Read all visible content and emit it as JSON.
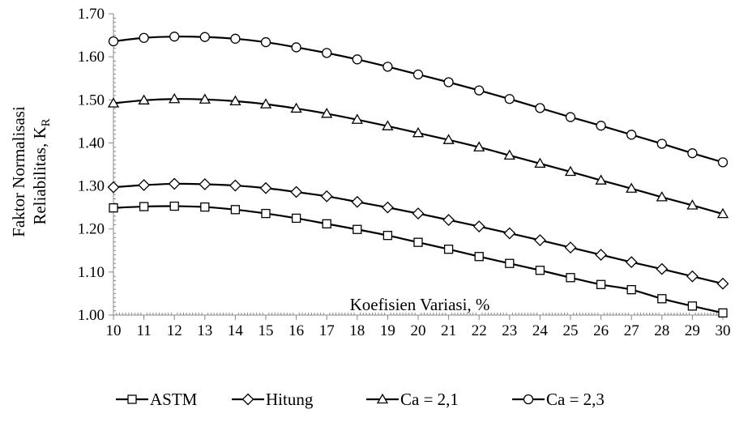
{
  "chart_data": {
    "type": "line",
    "xlabel": "Koefisien Variasi, %",
    "ylabel_line1": "Faktor Normalisasi",
    "ylabel_line2": "Reliabilitas, K",
    "ylabel_subscript": "R",
    "x": [
      10,
      11,
      12,
      13,
      14,
      15,
      16,
      17,
      18,
      19,
      20,
      21,
      22,
      23,
      24,
      25,
      26,
      27,
      28,
      29,
      30
    ],
    "x_tick_labels": [
      "10",
      "11",
      "12",
      "13",
      "14",
      "15",
      "16",
      "17",
      "18",
      "19",
      "20",
      "21",
      "22",
      "23",
      "24",
      "25",
      "26",
      "27",
      "28",
      "29",
      "30"
    ],
    "ylim": [
      1.0,
      1.7
    ],
    "y_tick_labels": [
      "1.00",
      "1.10",
      "1.20",
      "1.30",
      "1.40",
      "1.50",
      "1.60",
      "1.70"
    ],
    "grid": false,
    "legend_position": "bottom",
    "series": [
      {
        "name": "ASTM",
        "marker": "square",
        "values": [
          1.249,
          1.252,
          1.253,
          1.251,
          1.245,
          1.236,
          1.225,
          1.212,
          1.199,
          1.185,
          1.169,
          1.153,
          1.136,
          1.12,
          1.104,
          1.087,
          1.071,
          1.059,
          1.038,
          1.021,
          1.005
        ]
      },
      {
        "name": "Hitung",
        "marker": "diamond",
        "values": [
          1.297,
          1.302,
          1.305,
          1.304,
          1.301,
          1.295,
          1.286,
          1.276,
          1.263,
          1.25,
          1.236,
          1.221,
          1.206,
          1.19,
          1.174,
          1.157,
          1.14,
          1.123,
          1.107,
          1.09,
          1.073
        ]
      },
      {
        "name": "Ca = 2,1",
        "marker": "triangle",
        "values": [
          1.492,
          1.499,
          1.502,
          1.501,
          1.497,
          1.49,
          1.48,
          1.468,
          1.454,
          1.439,
          1.423,
          1.407,
          1.39,
          1.371,
          1.352,
          1.333,
          1.313,
          1.294,
          1.274,
          1.255,
          1.235
        ]
      },
      {
        "name": "Ca = 2,3",
        "marker": "circle",
        "values": [
          1.636,
          1.644,
          1.647,
          1.646,
          1.642,
          1.634,
          1.622,
          1.609,
          1.594,
          1.577,
          1.559,
          1.541,
          1.522,
          1.502,
          1.481,
          1.46,
          1.44,
          1.419,
          1.398,
          1.376,
          1.355
        ]
      }
    ]
  }
}
